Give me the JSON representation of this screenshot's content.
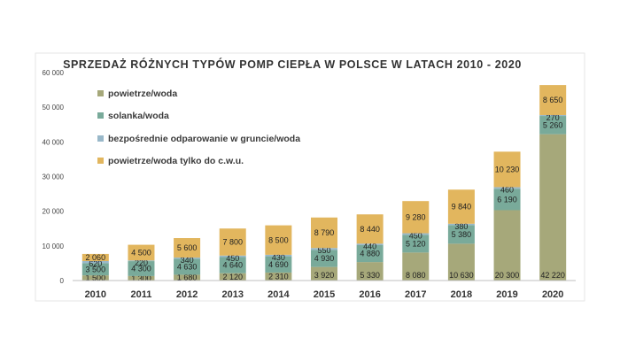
{
  "chart_data": {
    "type": "bar",
    "stacked": true,
    "title": "SPRZEDAŻ RÓŻNYCH TYPÓW POMP CIEPŁA W POLSCE W LATACH 2010 - 2020",
    "xlabel": "",
    "ylabel": "",
    "ylim": [
      0,
      60000
    ],
    "yticks": [
      "0",
      "10 000",
      "20 000",
      "30 000",
      "40 000",
      "50 000",
      "60 000"
    ],
    "grid": false,
    "legend_position": "top-left",
    "categories": [
      "2010",
      "2011",
      "2012",
      "2013",
      "2014",
      "2015",
      "2016",
      "2017",
      "2018",
      "2019",
      "2020"
    ],
    "series": [
      {
        "name": "powietrze/woda",
        "color": "#a6a87a",
        "values": [
          1500,
          1300,
          1680,
          2120,
          2310,
          3920,
          5330,
          8080,
          10630,
          20300,
          42220
        ],
        "labels": [
          "1 500",
          "1 300",
          "1 680",
          "2 120",
          "2 310",
          "3 920",
          "5 330",
          "8 080",
          "10 630",
          "20 300",
          "42 220"
        ]
      },
      {
        "name": "solanka/woda",
        "color": "#79aa9a",
        "values": [
          3500,
          4300,
          4630,
          4640,
          4690,
          4930,
          4880,
          5120,
          5380,
          6190,
          5260
        ],
        "labels": [
          "3 500",
          "4 300",
          "4 630",
          "4 640",
          "4 690",
          "4 930",
          "4 880",
          "5 120",
          "5 380",
          "6 190",
          "5 260"
        ]
      },
      {
        "name": "bezpośrednie odparowanie w gruncie/woda",
        "color": "#99b8c9",
        "values": [
          620,
          220,
          340,
          450,
          430,
          550,
          440,
          450,
          380,
          460,
          270
        ],
        "labels": [
          "620",
          "220",
          "340",
          "450",
          "430",
          "550",
          "440",
          "450",
          "380",
          "460",
          "270"
        ]
      },
      {
        "name": "powietrze/woda tylko do c.w.u.",
        "color": "#e2b65e",
        "values": [
          2060,
          4500,
          5600,
          7800,
          8500,
          8790,
          8440,
          9280,
          9840,
          10230,
          8650
        ],
        "labels": [
          "2 060",
          "4 500",
          "5 600",
          "7 800",
          "8 500",
          "8 790",
          "8 440",
          "9 280",
          "9 840",
          "10 230",
          "8 650"
        ]
      }
    ]
  }
}
